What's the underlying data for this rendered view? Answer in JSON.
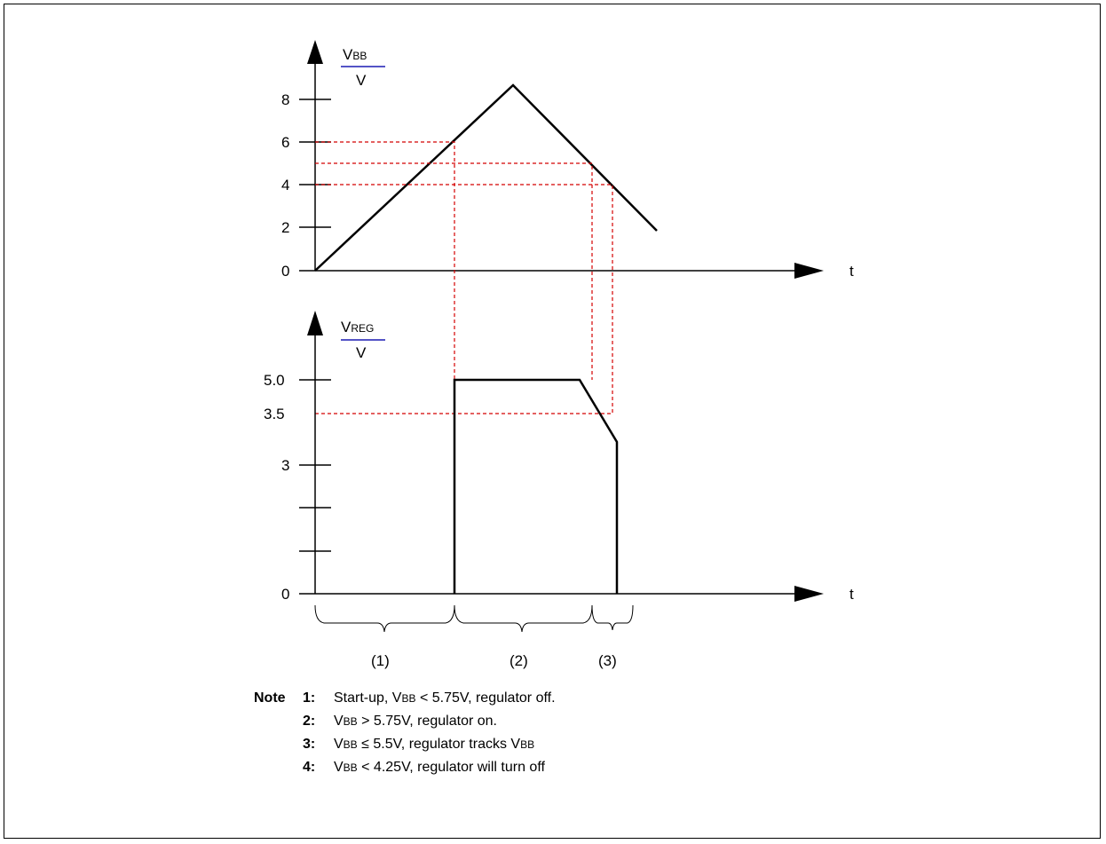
{
  "top_chart": {
    "y_label_main": "V",
    "y_label_sub": "BB",
    "y_unit": "V",
    "y_ticks": [
      "0",
      "2",
      "4",
      "6",
      "8"
    ],
    "x_label": "t"
  },
  "bottom_chart": {
    "y_label_main": "V",
    "y_label_sub": "REG",
    "y_unit": "V",
    "y_ticks": [
      "0",
      "3",
      "3.5",
      "5.0"
    ],
    "x_label": "t"
  },
  "regions": [
    "(1)",
    "(2)",
    "(3)"
  ],
  "notes": {
    "heading": "Note",
    "items": [
      {
        "num": "1:",
        "pre": "Start-up, V",
        "sub": "BB",
        "post": " < 5.75V, regulator off."
      },
      {
        "num": "2:",
        "pre": "V",
        "sub": "BB",
        "post": " > 5.75V, regulator on."
      },
      {
        "num": "3:",
        "pre": "V",
        "sub": "BB",
        "post": " ≤ 5.5V, regulator tracks V",
        "sub2": "BB"
      },
      {
        "num": "4:",
        "pre": "V",
        "sub": "BB",
        "post": " < 4.25V, regulator will turn off"
      }
    ]
  },
  "chart_data": [
    {
      "type": "line",
      "title": "",
      "xlabel": "t",
      "ylabel": "VBB / V",
      "ylim": [
        0,
        9
      ],
      "series": [
        {
          "x": [
            0,
            9,
            15.5
          ],
          "values": [
            0,
            8.7,
            1.8
          ]
        }
      ],
      "guides": [
        6,
        5,
        4
      ]
    },
    {
      "type": "line",
      "title": "",
      "xlabel": "t",
      "ylabel": "VREG / V",
      "series": [
        {
          "x": [
            0,
            6.2,
            6.2,
            12,
            13.4,
            13.4
          ],
          "values": [
            0,
            0,
            5.0,
            5.0,
            3.5,
            0
          ]
        }
      ],
      "guides": [
        5.0,
        3.5
      ]
    }
  ],
  "colors": {
    "guide": "#d40000",
    "fraction_bar": "#1c1cb4"
  }
}
